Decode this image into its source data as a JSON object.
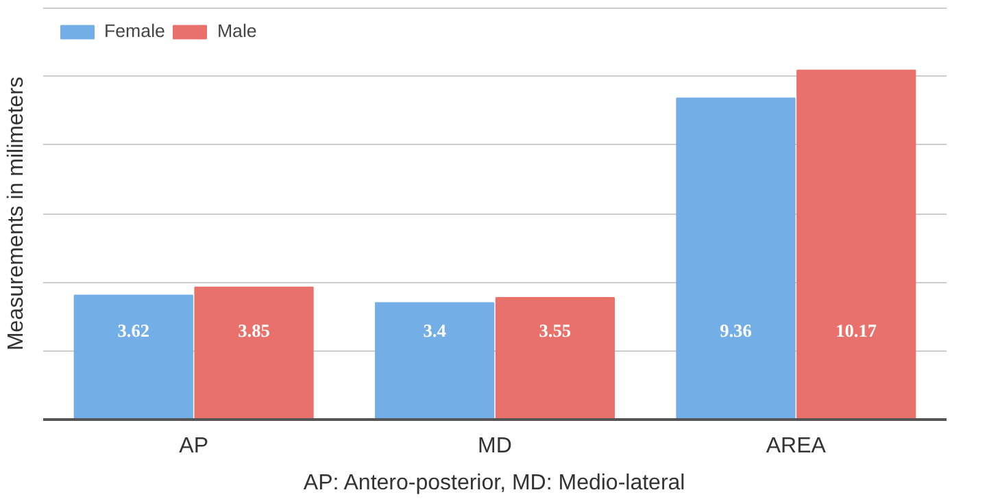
{
  "chart_data": {
    "type": "bar",
    "ylabel": "Measurements in milimeters",
    "categories": [
      "AP",
      "MD",
      "AREA"
    ],
    "series": [
      {
        "name": "Female",
        "color": "#74aee6",
        "values": [
          3.62,
          3.4,
          9.36
        ]
      },
      {
        "name": "Male",
        "color": "#e8716b",
        "values": [
          3.85,
          3.55,
          10.17
        ]
      }
    ],
    "ylim": [
      0,
      12
    ],
    "yticks": [
      {
        "value": 0,
        "label": null
      },
      {
        "value": 2,
        "label": null
      },
      {
        "value": 4,
        "label": null
      },
      {
        "value": 6,
        "label": null
      },
      {
        "value": 8,
        "label": null
      },
      {
        "value": 10,
        "label": null
      },
      {
        "value": 12,
        "label": null
      }
    ],
    "tick_labels": "x",
    "grid": "y",
    "legend": "top left",
    "data_labels": true,
    "annotations": [
      "AP: Antero-posterior, MD: Medio-lateral"
    ]
  }
}
